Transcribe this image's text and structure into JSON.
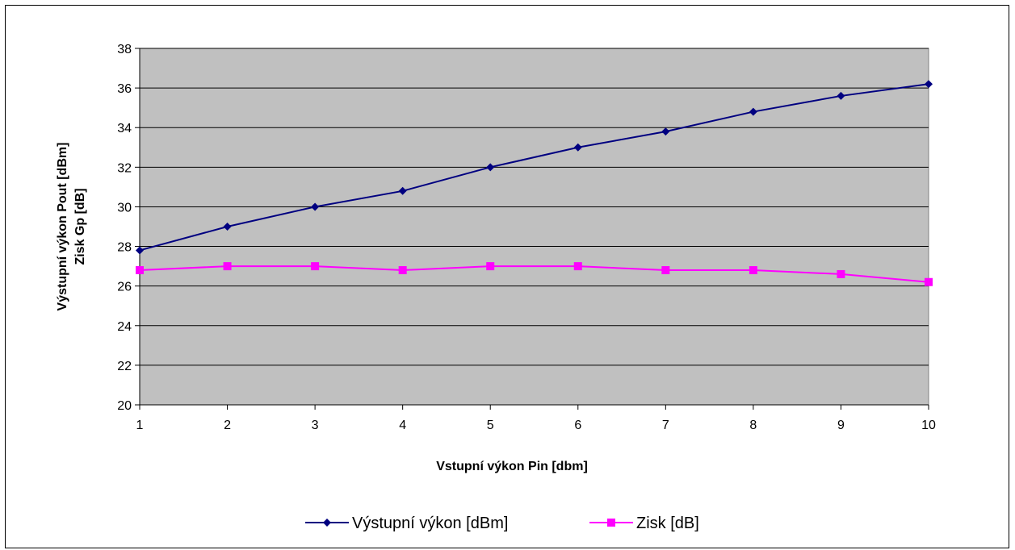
{
  "chart_data": {
    "type": "line",
    "title": "",
    "xlabel": "Vstupní výkon Pin [dbm]",
    "ylabel_lines": [
      "Výstupní výkon Pout [dBm]",
      "Zisk Gp [dB]"
    ],
    "x": [
      1,
      2,
      3,
      4,
      5,
      6,
      7,
      8,
      9,
      10
    ],
    "x_tick_labels": [
      "1",
      "2",
      "3",
      "4",
      "5",
      "6",
      "7",
      "8",
      "9",
      "10"
    ],
    "y_tick_labels": [
      "20",
      "22",
      "24",
      "26",
      "28",
      "30",
      "32",
      "34",
      "36",
      "38"
    ],
    "ylim": [
      20,
      38
    ],
    "y_step": 2,
    "grid": true,
    "legend_position": "bottom",
    "plot_background": "#c0c0c0",
    "series": [
      {
        "name": "Výstupní výkon [dBm]",
        "color": "#000080",
        "marker": "diamond",
        "values": [
          27.8,
          29.0,
          30.0,
          30.8,
          32.0,
          33.0,
          33.8,
          34.8,
          35.6,
          36.2
        ]
      },
      {
        "name": "Zisk [dB]",
        "color": "#ff00ff",
        "marker": "square",
        "values": [
          26.8,
          27.0,
          27.0,
          26.8,
          27.0,
          27.0,
          26.8,
          26.8,
          26.6,
          26.2
        ]
      }
    ]
  }
}
